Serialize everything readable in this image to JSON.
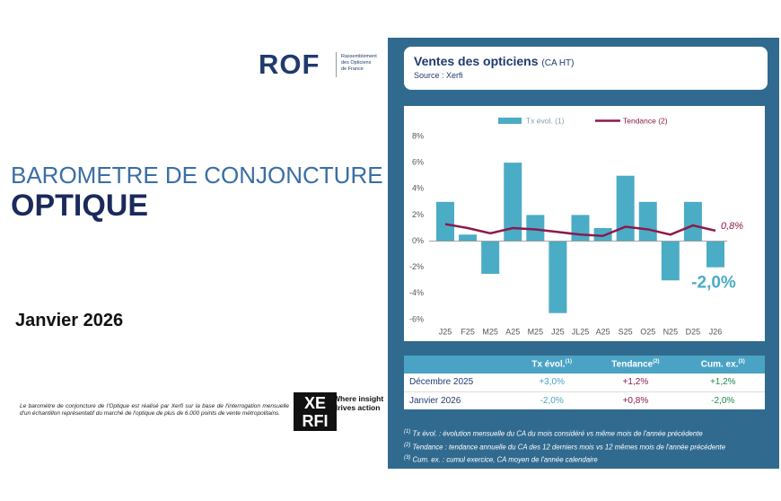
{
  "logo": {
    "name": "ROF",
    "tagline": [
      "Rassemblement",
      "des Opticiens",
      "de France"
    ]
  },
  "title": {
    "line1": "BAROMETRE DE CONJONCTURE",
    "line2": "OPTIQUE"
  },
  "date": "Janvier 2026",
  "disclaimer": "Le baromètre de conjoncture de l'Optique est réalisé par Xerfi sur la base de l'interrogation mensuelle d'un échantillon représentatif du marché de l'optique de plus de 6.000 points de vente métropolitains.",
  "xerfi": {
    "logo_lines": [
      "XE",
      "RFI"
    ],
    "tagline": [
      "Where insight",
      "drives action"
    ]
  },
  "panel": {
    "title": "Ventes des opticiens",
    "title_note": "(CA HT)",
    "source": "Source : Xerfi"
  },
  "chart_data": {
    "type": "bar",
    "categories": [
      "J25",
      "F25",
      "M25",
      "A25",
      "M25",
      "J25",
      "JL25",
      "A25",
      "S25",
      "O25",
      "N25",
      "D25",
      "J26"
    ],
    "series": [
      {
        "name": "Tx évol. (1)",
        "type": "bar",
        "color": "#4bacc6",
        "values": [
          3.0,
          0.5,
          -2.5,
          6.0,
          2.0,
          -5.5,
          2.0,
          1.0,
          5.0,
          3.0,
          -3.0,
          3.0,
          -2.0
        ],
        "value_labels": [
          null,
          null,
          null,
          null,
          null,
          null,
          null,
          null,
          null,
          null,
          null,
          null,
          "-2,0%"
        ]
      },
      {
        "name": "Tendance (2)",
        "type": "line",
        "color": "#8b1a4a",
        "values": [
          1.3,
          1.0,
          0.6,
          1.0,
          0.9,
          0.7,
          0.5,
          0.4,
          1.1,
          0.9,
          0.5,
          1.2,
          0.8
        ],
        "value_labels": [
          null,
          null,
          null,
          null,
          null,
          null,
          null,
          null,
          null,
          null,
          null,
          null,
          "0,8%"
        ]
      }
    ],
    "ylim": [
      -6,
      8
    ],
    "yticks": [
      {
        "value": -6,
        "label": "-6%"
      },
      {
        "value": -4,
        "label": "-4%"
      },
      {
        "value": -2,
        "label": "-2%"
      },
      {
        "value": 0,
        "label": "0%"
      },
      {
        "value": 2,
        "label": "2%"
      },
      {
        "value": 4,
        "label": "4%"
      },
      {
        "value": 6,
        "label": "6%"
      },
      {
        "value": 8,
        "label": "8%"
      }
    ],
    "grid": false,
    "legend": "top"
  },
  "table": {
    "columns": [
      {
        "text": "Tx évol.",
        "note": "(1)"
      },
      {
        "text": "Tendance",
        "note": "(2)"
      },
      {
        "text": "Cum. ex.",
        "note": "(3)"
      }
    ],
    "rows": [
      [
        "Décembre 2025",
        "+3,0%",
        "+1,2%",
        "+1,2%"
      ],
      [
        "Janvier 2026",
        "-2,0%",
        "+0,8%",
        "-2,0%"
      ]
    ]
  },
  "footnotes": [
    {
      "note": "(1)",
      "text": " Tx évol. : évolution mensuelle du CA du mois considéré vs même mois de l'année précédente"
    },
    {
      "note": "(2)",
      "text": " Tendance : tendance annuelle du CA des 12 derniers mois vs 12 mêmes mois de l'année précédente"
    },
    {
      "note": "(3)",
      "text": " Cum. ex. : cumul exercice, CA moyen de l'année calendaire"
    }
  ]
}
